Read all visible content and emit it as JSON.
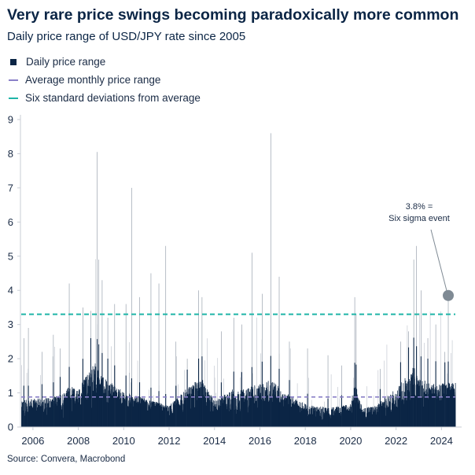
{
  "title": "Very rare price swings becoming paradoxically more common",
  "subtitle": "Daily price range of USD/JPY rate since 2005",
  "legend": [
    {
      "label": "Daily price range",
      "style": "square",
      "color": "#0b2545"
    },
    {
      "label": "Average monthly price range",
      "style": "dashed",
      "color": "#8a80c8"
    },
    {
      "label": "Six standard deviations from average",
      "style": "dashed",
      "color": "#1fb5a8"
    }
  ],
  "source": "Source: Convera, Macrobond",
  "annotation": {
    "line1": "3.8% =",
    "line2": "Six sigma event",
    "x": 2024.3,
    "y": 3.85,
    "marker_color": "#7f8a94"
  },
  "chart_data": {
    "type": "bar",
    "title": "Very rare price swings becoming paradoxically more common",
    "subtitle": "Daily price range of USD/JPY rate since 2005",
    "xlabel": "",
    "ylabel": "",
    "xlim": [
      2005.45,
      2024.75
    ],
    "ylim": [
      0,
      9
    ],
    "x_ticks": [
      2006,
      2008,
      2010,
      2012,
      2014,
      2016,
      2018,
      2020,
      2022,
      2024
    ],
    "y_ticks": [
      0,
      1,
      2,
      3,
      4,
      5,
      6,
      7,
      8,
      9
    ],
    "grid": false,
    "legend_position": "top-left",
    "bar_color": "#0b2545",
    "series": [
      {
        "name": "Daily price range",
        "style": "daily-bars",
        "baseline_by_year": [
          {
            "year": 2005.5,
            "typical": 0.55
          },
          {
            "year": 2006,
            "typical": 0.55
          },
          {
            "year": 2007,
            "typical": 0.6
          },
          {
            "year": 2007.6,
            "typical": 0.8
          },
          {
            "year": 2008,
            "typical": 0.75
          },
          {
            "year": 2008.7,
            "typical": 1.3
          },
          {
            "year": 2009,
            "typical": 1.0
          },
          {
            "year": 2010,
            "typical": 0.7
          },
          {
            "year": 2011,
            "typical": 0.55
          },
          {
            "year": 2012,
            "typical": 0.42
          },
          {
            "year": 2013,
            "typical": 0.85
          },
          {
            "year": 2013.5,
            "typical": 0.95
          },
          {
            "year": 2014,
            "typical": 0.5
          },
          {
            "year": 2014.8,
            "typical": 0.75
          },
          {
            "year": 2015,
            "typical": 0.7
          },
          {
            "year": 2016,
            "typical": 0.85
          },
          {
            "year": 2016.5,
            "typical": 0.95
          },
          {
            "year": 2017,
            "typical": 0.7
          },
          {
            "year": 2018,
            "typical": 0.45
          },
          {
            "year": 2019,
            "typical": 0.38
          },
          {
            "year": 2020,
            "typical": 0.45
          },
          {
            "year": 2020.2,
            "typical": 0.9
          },
          {
            "year": 2020.5,
            "typical": 0.38
          },
          {
            "year": 2021,
            "typical": 0.4
          },
          {
            "year": 2022,
            "typical": 0.75
          },
          {
            "year": 2022.8,
            "typical": 1.2
          },
          {
            "year": 2023,
            "typical": 0.95
          },
          {
            "year": 2024,
            "typical": 0.85
          },
          {
            "year": 2024.7,
            "typical": 0.9
          }
        ],
        "spikes": [
          {
            "x": 2005.6,
            "y": 2.6
          },
          {
            "x": 2005.8,
            "y": 2.9
          },
          {
            "x": 2006.4,
            "y": 2.2
          },
          {
            "x": 2006.9,
            "y": 2.7
          },
          {
            "x": 2007.2,
            "y": 2.3
          },
          {
            "x": 2007.6,
            "y": 4.2
          },
          {
            "x": 2008.2,
            "y": 3.5
          },
          {
            "x": 2008.55,
            "y": 3.4
          },
          {
            "x": 2008.83,
            "y": 8.05
          },
          {
            "x": 2008.9,
            "y": 4.9
          },
          {
            "x": 2009.05,
            "y": 4.3
          },
          {
            "x": 2009.3,
            "y": 3.2
          },
          {
            "x": 2009.6,
            "y": 3.6
          },
          {
            "x": 2010.1,
            "y": 3.6
          },
          {
            "x": 2010.35,
            "y": 7.0
          },
          {
            "x": 2010.7,
            "y": 3.8
          },
          {
            "x": 2011.2,
            "y": 4.5
          },
          {
            "x": 2011.55,
            "y": 4.2
          },
          {
            "x": 2011.85,
            "y": 5.3
          },
          {
            "x": 2012.3,
            "y": 2.5
          },
          {
            "x": 2012.8,
            "y": 2.0
          },
          {
            "x": 2013.3,
            "y": 4.0
          },
          {
            "x": 2013.45,
            "y": 3.8
          },
          {
            "x": 2014.3,
            "y": 2.8
          },
          {
            "x": 2014.85,
            "y": 3.2
          },
          {
            "x": 2015.2,
            "y": 3.0
          },
          {
            "x": 2015.65,
            "y": 5.1
          },
          {
            "x": 2016.1,
            "y": 3.9
          },
          {
            "x": 2016.48,
            "y": 8.6
          },
          {
            "x": 2016.85,
            "y": 4.4
          },
          {
            "x": 2017.3,
            "y": 2.5
          },
          {
            "x": 2018.1,
            "y": 2.3
          },
          {
            "x": 2019.0,
            "y": 2.1
          },
          {
            "x": 2019.6,
            "y": 1.8
          },
          {
            "x": 2020.18,
            "y": 3.8
          },
          {
            "x": 2020.24,
            "y": 3.3
          },
          {
            "x": 2021.3,
            "y": 1.7
          },
          {
            "x": 2022.2,
            "y": 2.5
          },
          {
            "x": 2022.55,
            "y": 2.8
          },
          {
            "x": 2022.78,
            "y": 4.9
          },
          {
            "x": 2022.9,
            "y": 5.3
          },
          {
            "x": 2023.1,
            "y": 4.0
          },
          {
            "x": 2023.4,
            "y": 2.6
          },
          {
            "x": 2023.75,
            "y": 3.0
          },
          {
            "x": 2024.15,
            "y": 2.2
          },
          {
            "x": 2024.3,
            "y": 3.85
          }
        ]
      },
      {
        "name": "Average monthly price range",
        "style": "dashed-line",
        "color": "#8a80c8",
        "y": 0.88
      },
      {
        "name": "Six standard deviations from average",
        "style": "dashed-line",
        "color": "#1fb5a8",
        "y": 3.3
      }
    ]
  }
}
